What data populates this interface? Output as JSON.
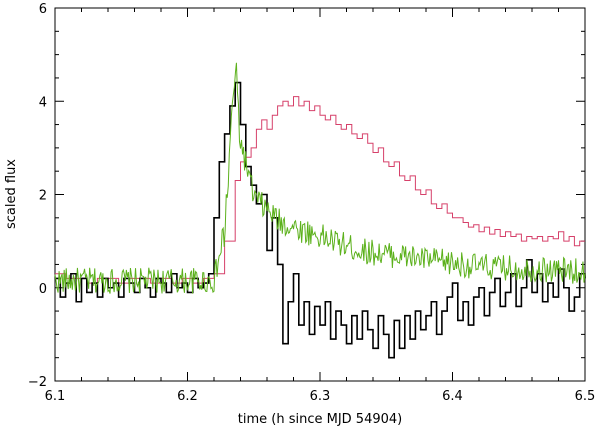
{
  "chart_data": {
    "type": "line",
    "title": "",
    "xlabel": "time (h since MJD 54904)",
    "ylabel": "scaled flux",
    "xlim": [
      6.1,
      6.5
    ],
    "ylim": [
      -2,
      6
    ],
    "xticks": [
      6.1,
      6.2,
      6.3,
      6.4,
      6.5
    ],
    "yticks": [
      -2,
      0,
      2,
      4,
      6
    ],
    "xtick_labels": [
      "6.1",
      "6.2",
      "6.3",
      "6.4",
      "6.5"
    ],
    "ytick_labels": [
      "−2",
      "0",
      "2",
      "4",
      "6"
    ],
    "grid": false,
    "series": [
      {
        "style": "step",
        "color": "#d6406a",
        "width": 1,
        "x": [
          6.1,
          6.108,
          6.116,
          6.124,
          6.132,
          6.14,
          6.148,
          6.156,
          6.164,
          6.172,
          6.18,
          6.188,
          6.196,
          6.204,
          6.212,
          6.22,
          6.228,
          6.236,
          6.24,
          6.244,
          6.248,
          6.252,
          6.256,
          6.26,
          6.264,
          6.268,
          6.272,
          6.276,
          6.28,
          6.284,
          6.288,
          6.292,
          6.296,
          6.3,
          6.304,
          6.308,
          6.312,
          6.316,
          6.32,
          6.324,
          6.328,
          6.332,
          6.336,
          6.34,
          6.344,
          6.348,
          6.352,
          6.356,
          6.36,
          6.364,
          6.368,
          6.372,
          6.376,
          6.38,
          6.384,
          6.388,
          6.392,
          6.396,
          6.4,
          6.404,
          6.408,
          6.412,
          6.416,
          6.42,
          6.424,
          6.428,
          6.432,
          6.436,
          6.44,
          6.444,
          6.448,
          6.452,
          6.456,
          6.46,
          6.464,
          6.468,
          6.472,
          6.476,
          6.48,
          6.484,
          6.488,
          6.492,
          6.496,
          6.5
        ],
        "y": [
          0.3,
          0.2,
          0.2,
          0.1,
          0.2,
          0.2,
          0.1,
          0.2,
          0.2,
          0.1,
          0.2,
          0.1,
          0.2,
          0.1,
          0.2,
          0.3,
          1.0,
          2.3,
          2.7,
          2.8,
          3.0,
          3.4,
          3.6,
          3.4,
          3.7,
          3.9,
          4.0,
          3.9,
          4.1,
          3.9,
          4.0,
          3.8,
          3.9,
          3.7,
          3.6,
          3.7,
          3.5,
          3.4,
          3.5,
          3.3,
          3.2,
          3.3,
          3.1,
          2.9,
          3.0,
          2.7,
          2.6,
          2.7,
          2.4,
          2.3,
          2.4,
          2.1,
          2.0,
          2.1,
          1.8,
          1.7,
          1.8,
          1.6,
          1.5,
          1.5,
          1.4,
          1.3,
          1.35,
          1.2,
          1.3,
          1.15,
          1.25,
          1.1,
          1.2,
          1.1,
          1.15,
          1.0,
          1.1,
          1.05,
          1.1,
          1.0,
          1.1,
          1.05,
          1.2,
          1.0,
          1.1,
          0.9,
          1.0,
          1.0
        ]
      },
      {
        "style": "step",
        "color": "#000000",
        "width": 1.6,
        "x": [
          6.1,
          6.104,
          6.108,
          6.112,
          6.116,
          6.12,
          6.124,
          6.128,
          6.132,
          6.136,
          6.14,
          6.144,
          6.148,
          6.152,
          6.156,
          6.16,
          6.164,
          6.168,
          6.172,
          6.176,
          6.18,
          6.184,
          6.188,
          6.192,
          6.196,
          6.2,
          6.204,
          6.208,
          6.212,
          6.216,
          6.22,
          6.224,
          6.228,
          6.232,
          6.236,
          6.24,
          6.244,
          6.248,
          6.252,
          6.256,
          6.26,
          6.264,
          6.268,
          6.272,
          6.276,
          6.28,
          6.284,
          6.288,
          6.292,
          6.296,
          6.3,
          6.304,
          6.308,
          6.312,
          6.316,
          6.32,
          6.324,
          6.328,
          6.332,
          6.336,
          6.34,
          6.344,
          6.348,
          6.352,
          6.356,
          6.36,
          6.364,
          6.368,
          6.372,
          6.376,
          6.38,
          6.384,
          6.388,
          6.392,
          6.396,
          6.4,
          6.404,
          6.408,
          6.412,
          6.416,
          6.42,
          6.424,
          6.428,
          6.432,
          6.436,
          6.44,
          6.444,
          6.448,
          6.452,
          6.456,
          6.46,
          6.464,
          6.468,
          6.472,
          6.476,
          6.48,
          6.484,
          6.488,
          6.492,
          6.496,
          6.5
        ],
        "y": [
          0.2,
          -0.2,
          0.1,
          0.3,
          -0.3,
          0.2,
          -0.1,
          0.1,
          -0.2,
          0.2,
          0.0,
          0.1,
          -0.2,
          0.2,
          0.1,
          -0.1,
          0.2,
          0.0,
          -0.2,
          0.2,
          0.1,
          -0.1,
          0.3,
          0.0,
          0.1,
          -0.1,
          0.2,
          0.0,
          0.1,
          0.3,
          1.5,
          2.7,
          3.3,
          3.9,
          4.4,
          3.5,
          2.6,
          2.2,
          1.8,
          2.0,
          0.8,
          1.5,
          0.5,
          -1.2,
          -0.3,
          0.3,
          -0.8,
          -0.3,
          -1.0,
          -0.4,
          -0.8,
          -0.3,
          -1.1,
          -0.5,
          -0.8,
          -1.2,
          -0.6,
          -1.1,
          -0.5,
          -0.9,
          -1.3,
          -0.6,
          -1.0,
          -1.5,
          -0.7,
          -1.3,
          -0.6,
          -1.1,
          -0.5,
          -0.9,
          -0.6,
          -0.3,
          -1.0,
          -0.5,
          -0.2,
          0.1,
          -0.7,
          -0.3,
          -0.8,
          -0.2,
          0.0,
          -0.6,
          -0.1,
          0.2,
          -0.4,
          -0.1,
          0.3,
          -0.4,
          0.0,
          0.6,
          -0.1,
          0.3,
          -0.3,
          0.1,
          -0.2,
          0.4,
          0.0,
          -0.5,
          -0.2,
          0.3,
          0.2
        ]
      }
    ]
  }
}
